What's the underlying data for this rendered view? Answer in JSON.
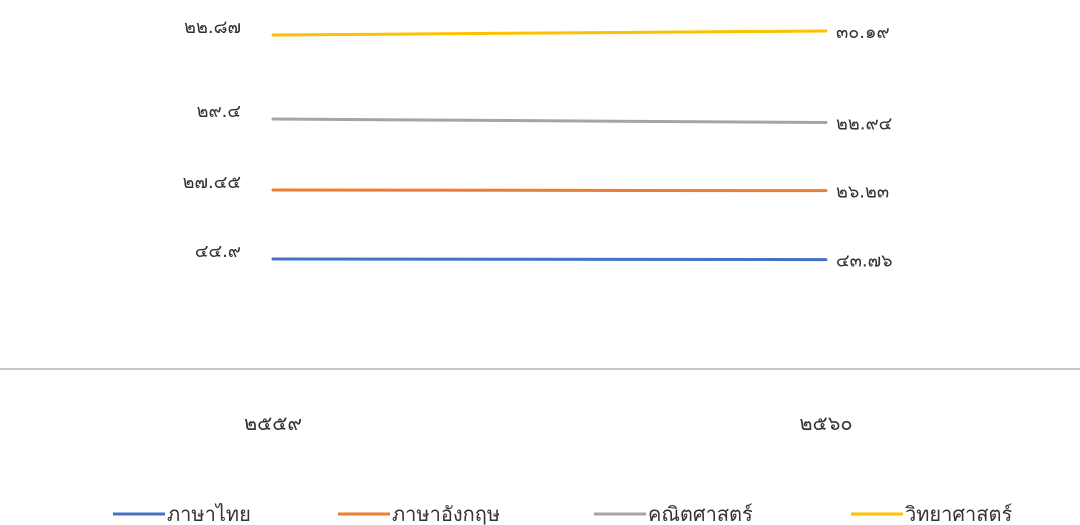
{
  "chart_data": {
    "type": "line",
    "categories": [
      "๒๕๕๙",
      "๒๕๖๐"
    ],
    "series": [
      {
        "name": "ภาษาไทย",
        "values": [
          44.9,
          43.76
        ],
        "labels": [
          "๔๔.๙",
          "๔๓.๗๖"
        ],
        "color": "#4472C4"
      },
      {
        "name": "ภาษาอังกฤษ",
        "values": [
          27.45,
          26.23
        ],
        "labels": [
          "๒๗.๔๕",
          "๒๖.๒๓"
        ],
        "color": "#ED7D31"
      },
      {
        "name": "คณิตศาสตร์",
        "values": [
          29.4,
          22.94
        ],
        "labels": [
          "๒๙.๔",
          "๒๒.๙๔"
        ],
        "color": "#A5A5A5"
      },
      {
        "name": "วิทยาศาสตร์",
        "values": [
          22.87,
          30.19
        ],
        "labels": [
          "๒๒.๘๗",
          "๓๐.๑๙"
        ],
        "color": "#FFC000"
      }
    ],
    "title": "",
    "xlabel": "",
    "ylabel": "",
    "grid": false,
    "legend_position": "bottom"
  }
}
